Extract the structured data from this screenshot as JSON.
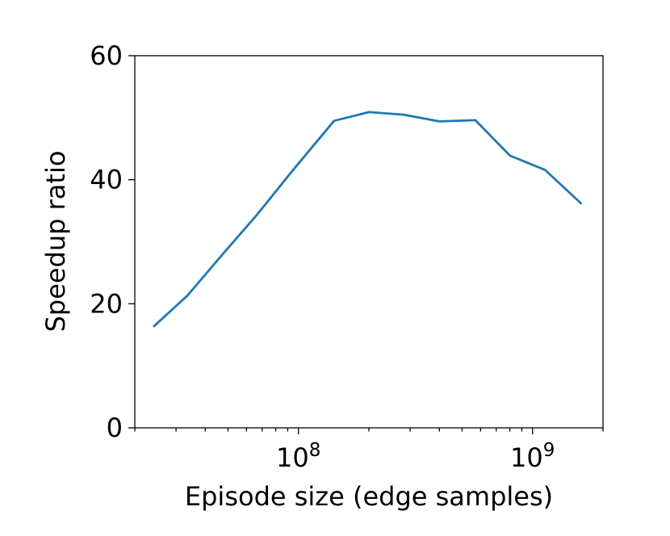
{
  "chart_data": {
    "type": "line",
    "title": "",
    "xlabel": "Episode size (edge samples)",
    "ylabel": "Speedup ratio",
    "xscale": "log",
    "xlim": [
      20000000,
      2000000000
    ],
    "ylim": [
      0,
      60
    ],
    "grid": false,
    "legend": "none",
    "x_major_ticks": [
      {
        "value": 100000000,
        "base": "10",
        "exp": "8"
      },
      {
        "value": 1000000000,
        "base": "10",
        "exp": "9"
      }
    ],
    "x_minor_ticks": [
      20000000,
      30000000,
      40000000,
      50000000,
      60000000,
      70000000,
      80000000,
      90000000,
      200000000,
      300000000,
      400000000,
      500000000,
      600000000,
      700000000,
      800000000,
      900000000,
      2000000000
    ],
    "y_ticks": [
      {
        "value": 0,
        "label": "0"
      },
      {
        "value": 20,
        "label": "20"
      },
      {
        "value": 40,
        "label": "40"
      },
      {
        "value": 60,
        "label": "60"
      }
    ],
    "series": [
      {
        "color": "#1f77b4",
        "x": [
          24000000,
          33500000,
          47000000,
          67000000,
          95000000,
          142000000,
          200000000,
          280000000,
          400000000,
          570000000,
          800000000,
          1130000000,
          1620000000
        ],
        "y": [
          16.3,
          21.3,
          27.8,
          34.5,
          41.6,
          49.5,
          50.9,
          50.5,
          49.4,
          49.6,
          43.9,
          41.6,
          36.1
        ]
      }
    ]
  }
}
